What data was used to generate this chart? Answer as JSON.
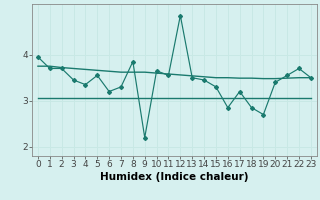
{
  "x": [
    0,
    1,
    2,
    3,
    4,
    5,
    6,
    7,
    8,
    9,
    10,
    11,
    12,
    13,
    14,
    15,
    16,
    17,
    18,
    19,
    20,
    21,
    22,
    23
  ],
  "y_main": [
    3.95,
    3.7,
    3.7,
    3.45,
    3.35,
    3.55,
    3.2,
    3.3,
    3.85,
    2.2,
    3.65,
    3.55,
    4.85,
    3.5,
    3.45,
    3.3,
    2.85,
    3.2,
    2.85,
    2.7,
    3.4,
    3.55,
    3.7,
    3.5
  ],
  "y_trend1": [
    3.75,
    3.75,
    3.72,
    3.7,
    3.68,
    3.66,
    3.64,
    3.62,
    3.62,
    3.62,
    3.6,
    3.58,
    3.56,
    3.54,
    3.52,
    3.5,
    3.5,
    3.49,
    3.49,
    3.48,
    3.48,
    3.49,
    3.5,
    3.5
  ],
  "y_flat": [
    3.05,
    3.05,
    3.05,
    3.05,
    3.05,
    3.05,
    3.05,
    3.05,
    3.05,
    3.05,
    3.05,
    3.05,
    3.05,
    3.05,
    3.05,
    3.05,
    3.05,
    3.05,
    3.05,
    3.05,
    3.05,
    3.05,
    3.05,
    3.05
  ],
  "line_color": "#1a7a6e",
  "bg_color": "#d6f0ef",
  "grid_color": "#c8e8e5",
  "xlabel": "Humidex (Indice chaleur)",
  "yticks": [
    2,
    3,
    4
  ],
  "xlim": [
    -0.5,
    23.5
  ],
  "ylim": [
    1.8,
    5.1
  ],
  "xlabel_fontsize": 7.5,
  "tick_fontsize": 6.5
}
